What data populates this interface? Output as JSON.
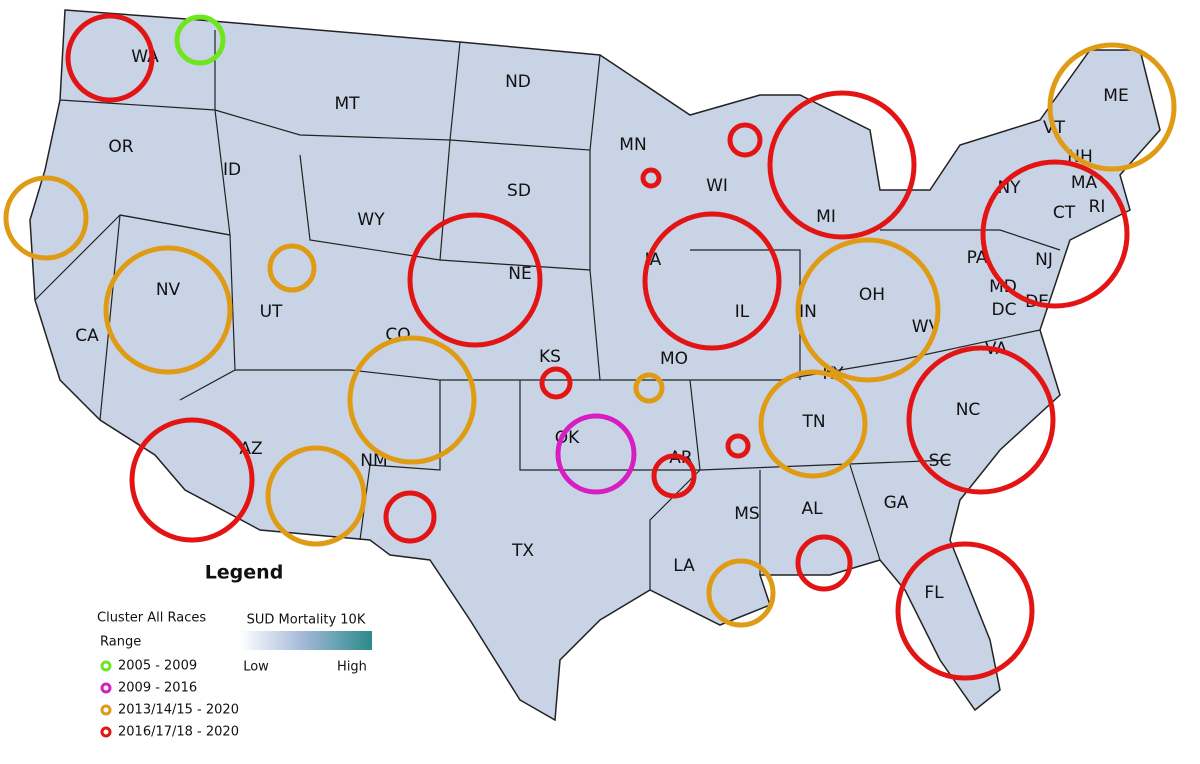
{
  "map": {
    "states": [
      "WA",
      "MT",
      "ND",
      "MN",
      "OR",
      "ID",
      "SD",
      "WI",
      "MI",
      "ME",
      "VT",
      "NH",
      "NY",
      "MA",
      "CT",
      "RI",
      "WY",
      "NE",
      "IA",
      "IL",
      "IN",
      "OH",
      "PA",
      "NJ",
      "MD",
      "DE",
      "DC",
      "WV",
      "VA",
      "NV",
      "UT",
      "CO",
      "CA",
      "KS",
      "MO",
      "KY",
      "NC",
      "TN",
      "OK",
      "AR",
      "AZ",
      "NM",
      "SC",
      "AL",
      "GA",
      "MS",
      "TX",
      "LA",
      "FL"
    ],
    "legend": {
      "title": "Legend",
      "cluster_title": "Cluster All Races",
      "range_label": "Range",
      "ranges": [
        {
          "label": "2005 - 2009",
          "color": "#6ee61f"
        },
        {
          "label": "2009 - 2016",
          "color": "#d81ec2"
        },
        {
          "label": "2013/14/15 - 2020",
          "color": "#e09b14"
        },
        {
          "label": "2016/17/18 - 2020",
          "color": "#e31414"
        }
      ]
    },
    "gradient": {
      "title": "SUD Mortality 10K",
      "low": "Low",
      "high": "High",
      "low_color": "#ffffff",
      "high_color": "#2a8a8a"
    }
  }
}
